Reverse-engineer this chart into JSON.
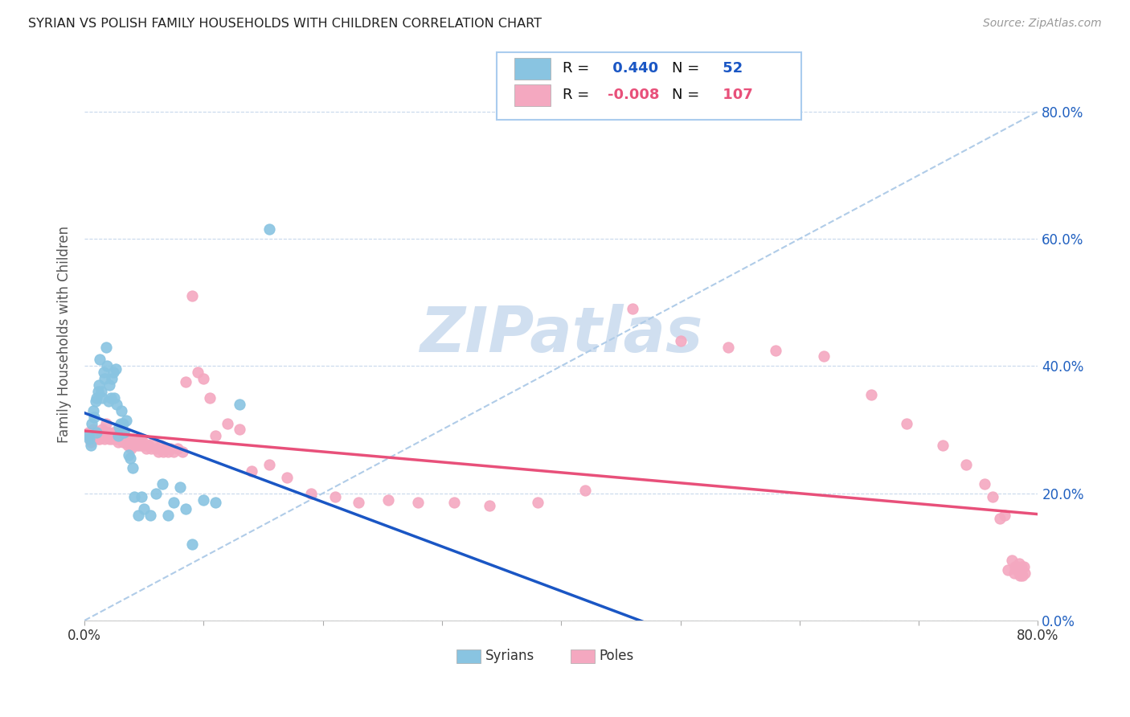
{
  "title": "SYRIAN VS POLISH FAMILY HOUSEHOLDS WITH CHILDREN CORRELATION CHART",
  "source": "Source: ZipAtlas.com",
  "ylabel": "Family Households with Children",
  "syrians_R": 0.44,
  "syrians_N": 52,
  "poles_R": -0.008,
  "poles_N": 107,
  "syrians_color": "#89c4e1",
  "poles_color": "#f4a8c0",
  "syrian_line_color": "#1a56c4",
  "pole_line_color": "#e8507a",
  "dashed_line_color": "#b0cce8",
  "background_color": "#ffffff",
  "watermark_color": "#d0dff0",
  "syrians_x": [
    0.003,
    0.004,
    0.005,
    0.006,
    0.007,
    0.008,
    0.009,
    0.01,
    0.01,
    0.011,
    0.012,
    0.013,
    0.014,
    0.015,
    0.016,
    0.017,
    0.018,
    0.019,
    0.02,
    0.021,
    0.022,
    0.023,
    0.024,
    0.025,
    0.026,
    0.027,
    0.028,
    0.029,
    0.03,
    0.031,
    0.032,
    0.033,
    0.035,
    0.037,
    0.038,
    0.04,
    0.042,
    0.045,
    0.048,
    0.05,
    0.055,
    0.06,
    0.065,
    0.07,
    0.075,
    0.08,
    0.085,
    0.09,
    0.1,
    0.11,
    0.13,
    0.155
  ],
  "syrians_y": [
    0.29,
    0.285,
    0.275,
    0.31,
    0.33,
    0.32,
    0.345,
    0.35,
    0.295,
    0.36,
    0.37,
    0.41,
    0.36,
    0.35,
    0.39,
    0.38,
    0.43,
    0.4,
    0.345,
    0.37,
    0.35,
    0.38,
    0.39,
    0.35,
    0.395,
    0.34,
    0.29,
    0.305,
    0.31,
    0.33,
    0.31,
    0.295,
    0.315,
    0.26,
    0.255,
    0.24,
    0.195,
    0.165,
    0.195,
    0.175,
    0.165,
    0.2,
    0.215,
    0.165,
    0.185,
    0.21,
    0.175,
    0.12,
    0.19,
    0.185,
    0.34,
    0.615
  ],
  "poles_x": [
    0.003,
    0.004,
    0.005,
    0.006,
    0.007,
    0.008,
    0.009,
    0.01,
    0.011,
    0.012,
    0.013,
    0.014,
    0.015,
    0.016,
    0.017,
    0.018,
    0.019,
    0.02,
    0.021,
    0.022,
    0.023,
    0.024,
    0.025,
    0.026,
    0.027,
    0.028,
    0.029,
    0.03,
    0.031,
    0.032,
    0.033,
    0.034,
    0.035,
    0.036,
    0.037,
    0.038,
    0.039,
    0.04,
    0.041,
    0.042,
    0.043,
    0.044,
    0.045,
    0.046,
    0.047,
    0.048,
    0.049,
    0.05,
    0.052,
    0.054,
    0.056,
    0.058,
    0.06,
    0.062,
    0.064,
    0.066,
    0.068,
    0.07,
    0.072,
    0.075,
    0.078,
    0.082,
    0.085,
    0.09,
    0.095,
    0.1,
    0.105,
    0.11,
    0.12,
    0.13,
    0.14,
    0.155,
    0.17,
    0.19,
    0.21,
    0.23,
    0.255,
    0.28,
    0.31,
    0.34,
    0.38,
    0.42,
    0.46,
    0.5,
    0.54,
    0.58,
    0.62,
    0.66,
    0.69,
    0.72,
    0.74,
    0.755,
    0.762,
    0.768,
    0.772,
    0.775,
    0.778,
    0.78,
    0.781,
    0.782,
    0.783,
    0.784,
    0.785,
    0.786,
    0.787,
    0.788,
    0.789
  ],
  "poles_y": [
    0.295,
    0.29,
    0.28,
    0.295,
    0.3,
    0.285,
    0.295,
    0.29,
    0.285,
    0.29,
    0.285,
    0.295,
    0.3,
    0.295,
    0.285,
    0.31,
    0.29,
    0.295,
    0.285,
    0.29,
    0.285,
    0.295,
    0.295,
    0.285,
    0.29,
    0.28,
    0.295,
    0.285,
    0.29,
    0.28,
    0.295,
    0.28,
    0.285,
    0.275,
    0.285,
    0.285,
    0.27,
    0.285,
    0.275,
    0.28,
    0.28,
    0.275,
    0.28,
    0.275,
    0.285,
    0.275,
    0.28,
    0.275,
    0.27,
    0.275,
    0.27,
    0.28,
    0.27,
    0.265,
    0.275,
    0.265,
    0.27,
    0.265,
    0.27,
    0.265,
    0.27,
    0.265,
    0.375,
    0.51,
    0.39,
    0.38,
    0.35,
    0.29,
    0.31,
    0.3,
    0.235,
    0.245,
    0.225,
    0.2,
    0.195,
    0.185,
    0.19,
    0.185,
    0.185,
    0.18,
    0.185,
    0.205,
    0.49,
    0.44,
    0.43,
    0.425,
    0.415,
    0.355,
    0.31,
    0.275,
    0.245,
    0.215,
    0.195,
    0.16,
    0.165,
    0.08,
    0.095,
    0.075,
    0.085,
    0.08,
    0.085,
    0.09,
    0.07,
    0.085,
    0.07,
    0.085,
    0.075
  ],
  "xlim": [
    0.0,
    0.8
  ],
  "ylim": [
    0.0,
    0.9
  ],
  "yticks": [
    0.0,
    0.2,
    0.4,
    0.6,
    0.8
  ],
  "ytick_labels": [
    "0.0%",
    "20.0%",
    "40.0%",
    "60.0%",
    "80.0%"
  ],
  "xtick_positions": [
    0.0,
    0.1,
    0.2,
    0.3,
    0.4,
    0.5,
    0.6,
    0.7,
    0.8
  ],
  "xtick_labels": [
    "0.0%",
    "",
    "",
    "",
    "",
    "",
    "",
    "",
    "80.0%"
  ]
}
